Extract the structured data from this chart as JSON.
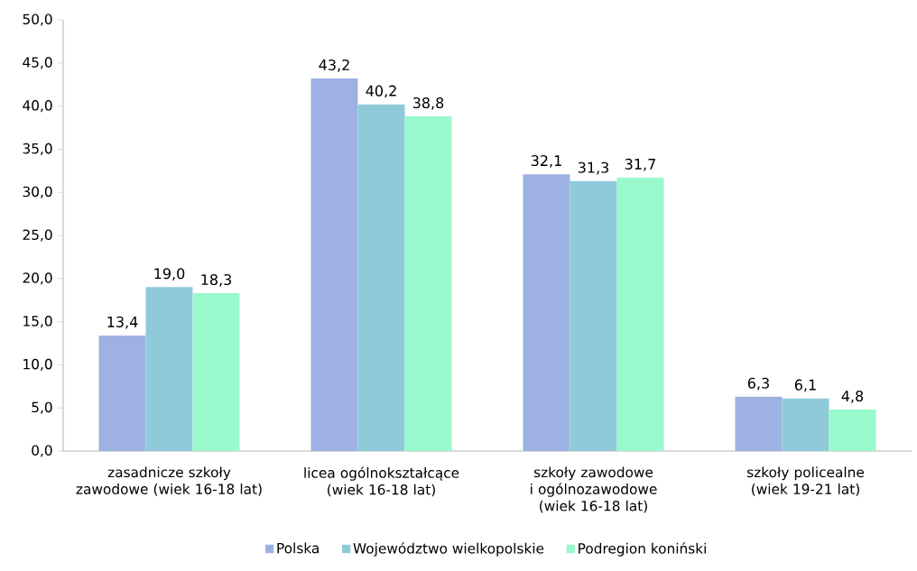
{
  "chart_data": {
    "type": "bar",
    "categories": [
      "zasadnicze szkoły zawodowe (wiek 16-18 lat)",
      "licea ogólnokształcące (wiek 16-18 lat)",
      "szkoły zawodowe i ogólnozawodowe (wiek 16-18 lat)",
      "szkoły policealne (wiek 19-21 lat)"
    ],
    "series": [
      {
        "name": "Polska",
        "color": "#9db2e2",
        "values": [
          13.4,
          43.2,
          32.1,
          6.3
        ],
        "value_labels": [
          "13,4",
          "43,2",
          "32,1",
          "6,3"
        ]
      },
      {
        "name": "Województwo wielkopolskie",
        "color": "#8fcadb",
        "values": [
          19.0,
          40.2,
          31.3,
          6.1
        ],
        "value_labels": [
          "19,0",
          "40,2",
          "31,3",
          "6,1"
        ]
      },
      {
        "name": "Podregion koniński",
        "color": "#99f9cc",
        "values": [
          18.3,
          38.8,
          31.7,
          4.8
        ],
        "value_labels": [
          "18,3",
          "38,8",
          "31,7",
          "4,8"
        ]
      }
    ],
    "ylim": [
      0,
      50
    ],
    "yticks": [
      {
        "value": 0,
        "label": "0,0"
      },
      {
        "value": 5,
        "label": "5,0"
      },
      {
        "value": 10,
        "label": "10,0"
      },
      {
        "value": 15,
        "label": "15,0"
      },
      {
        "value": 20,
        "label": "20,0"
      },
      {
        "value": 25,
        "label": "25,0"
      },
      {
        "value": 30,
        "label": "30,0"
      },
      {
        "value": 35,
        "label": "35,0"
      },
      {
        "value": 40,
        "label": "40,0"
      },
      {
        "value": 45,
        "label": "45,0"
      },
      {
        "value": 50,
        "label": "50,0"
      }
    ],
    "legend": "bottom",
    "grid": false
  }
}
